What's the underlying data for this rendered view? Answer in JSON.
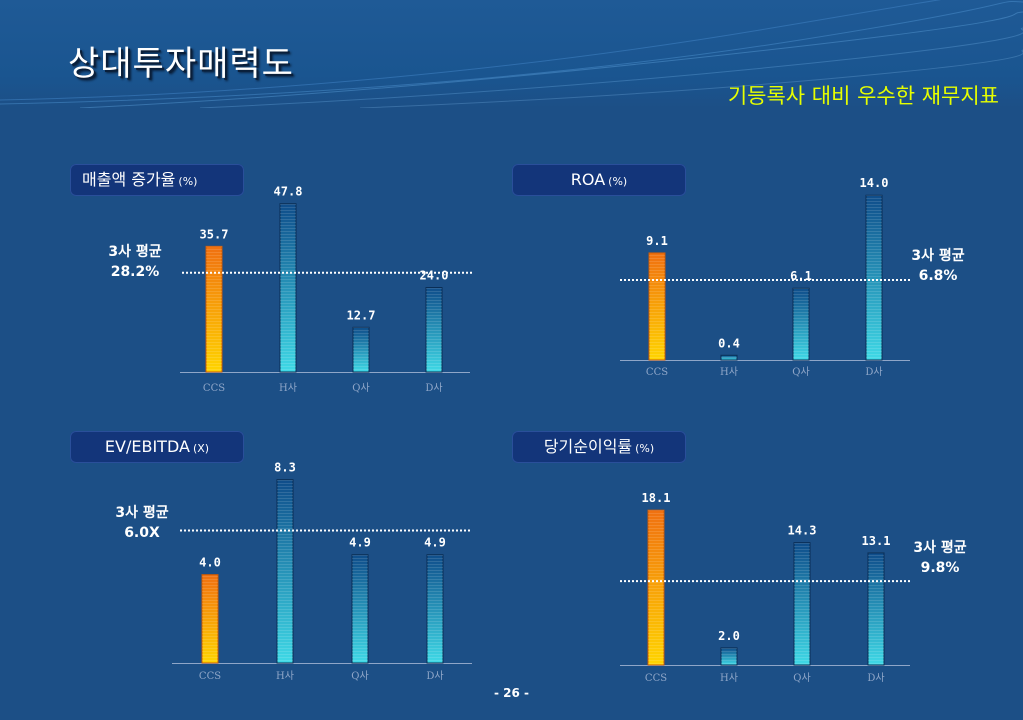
{
  "header": {
    "title": "상대투자매력도",
    "subtitle": "기등록사 대비 우수한 재무지표"
  },
  "footer": {
    "page_number": "- 26 -"
  },
  "colors": {
    "background": "#1c4f86",
    "subtitle": "#e6ff00",
    "title_box": "#13357a",
    "ccs_bar_top": "#f07010",
    "ccs_bar_bottom": "#ffd400",
    "peer_bar_top": "#0f4d8a",
    "peer_bar_bottom": "#3fd9e6",
    "avg_line": "#ffffff",
    "axis": "#8fa6c8"
  },
  "chart_data": [
    {
      "id": "sales-growth",
      "type": "bar",
      "title": "매출액 증가율",
      "unit": "(%)",
      "categories": [
        "CCS",
        "H사",
        "Q사",
        "D사"
      ],
      "values": [
        35.7,
        47.8,
        12.7,
        24.0
      ],
      "value_labels": [
        "35.7",
        "47.8",
        "12.7",
        "24.0"
      ],
      "ylim": [
        0,
        50
      ],
      "average": {
        "label": "3사 평균",
        "value": 28.2,
        "value_label": "28.2%",
        "side": "left"
      }
    },
    {
      "id": "roa",
      "type": "bar",
      "title": "ROA",
      "unit": "(%)",
      "categories": [
        "CCS",
        "H사",
        "Q사",
        "D사"
      ],
      "values": [
        9.1,
        0.4,
        6.1,
        14.0
      ],
      "value_labels": [
        "9.1",
        "0.4",
        "6.1",
        "14.0"
      ],
      "ylim": [
        0,
        14.7
      ],
      "average": {
        "label": "3사 평균",
        "value": 6.8,
        "value_label": "6.8%",
        "side": "right"
      }
    },
    {
      "id": "ev-ebitda",
      "type": "bar",
      "title": "EV/EBITDA",
      "unit": "(X)",
      "categories": [
        "CCS",
        "H사",
        "Q사",
        "D사"
      ],
      "values": [
        4.0,
        8.3,
        4.9,
        4.9
      ],
      "value_labels": [
        "4.0",
        "8.3",
        "4.9",
        "4.9"
      ],
      "ylim": [
        0,
        8.6
      ],
      "average": {
        "label": "3사 평균",
        "value": 6.0,
        "value_label": "6.0X",
        "side": "left"
      }
    },
    {
      "id": "net-margin",
      "type": "bar",
      "title": "당기순이익률",
      "unit": "(%)",
      "categories": [
        "CCS",
        "H사",
        "Q사",
        "D사"
      ],
      "values": [
        18.1,
        2.0,
        14.3,
        13.1
      ],
      "value_labels": [
        "18.1",
        "2.0",
        "14.3",
        "13.1"
      ],
      "ylim": [
        0,
        19.4
      ],
      "average": {
        "label": "3사 평균",
        "value": 9.8,
        "value_label": "9.8%",
        "side": "right"
      }
    }
  ]
}
